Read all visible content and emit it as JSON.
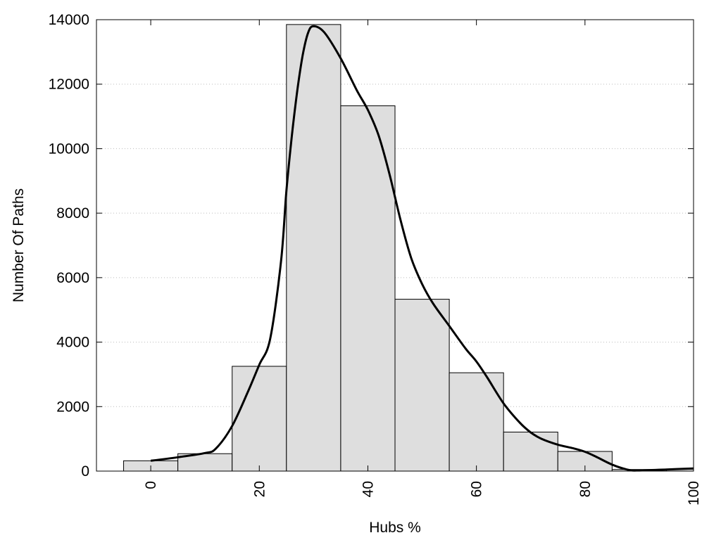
{
  "chart_data": {
    "type": "bar",
    "title": "",
    "xlabel": "Hubs %",
    "ylabel": "Number Of Paths",
    "xlim": [
      -10,
      100
    ],
    "ylim": [
      0,
      14000
    ],
    "grid": true,
    "x_ticks": [
      0,
      20,
      40,
      60,
      80,
      100
    ],
    "y_ticks": [
      0,
      2000,
      4000,
      6000,
      8000,
      10000,
      12000,
      14000
    ],
    "bar_color": "#dedede",
    "bar_edge_color": "#000000",
    "bin_width": 10,
    "bins": [
      {
        "center": 0,
        "value": 320
      },
      {
        "center": 10,
        "value": 540
      },
      {
        "center": 20,
        "value": 3250
      },
      {
        "center": 30,
        "value": 13850
      },
      {
        "center": 40,
        "value": 11330
      },
      {
        "center": 50,
        "value": 5330
      },
      {
        "center": 60,
        "value": 3050
      },
      {
        "center": 70,
        "value": 1210
      },
      {
        "center": 80,
        "value": 610
      },
      {
        "center": 90,
        "value": 50
      },
      {
        "center": 100,
        "value": 60
      }
    ],
    "curve": {
      "color": "#000000",
      "x": [
        0,
        5,
        10,
        12,
        15,
        18,
        20,
        22,
        24,
        25,
        26,
        27,
        28,
        29,
        30,
        32,
        35,
        38,
        40,
        42,
        44,
        46,
        48,
        50,
        52,
        55,
        58,
        60,
        62,
        65,
        68,
        70,
        72,
        75,
        78,
        80,
        82,
        85,
        88,
        90,
        95,
        100
      ],
      "y": [
        320,
        430,
        560,
        700,
        1400,
        2500,
        3300,
        4100,
        6500,
        8700,
        10400,
        11800,
        12900,
        13600,
        13800,
        13600,
        12800,
        11800,
        11200,
        10400,
        9200,
        7800,
        6600,
        5800,
        5200,
        4500,
        3800,
        3400,
        2900,
        2100,
        1500,
        1200,
        1000,
        820,
        700,
        600,
        450,
        200,
        40,
        20,
        50,
        80
      ]
    }
  }
}
